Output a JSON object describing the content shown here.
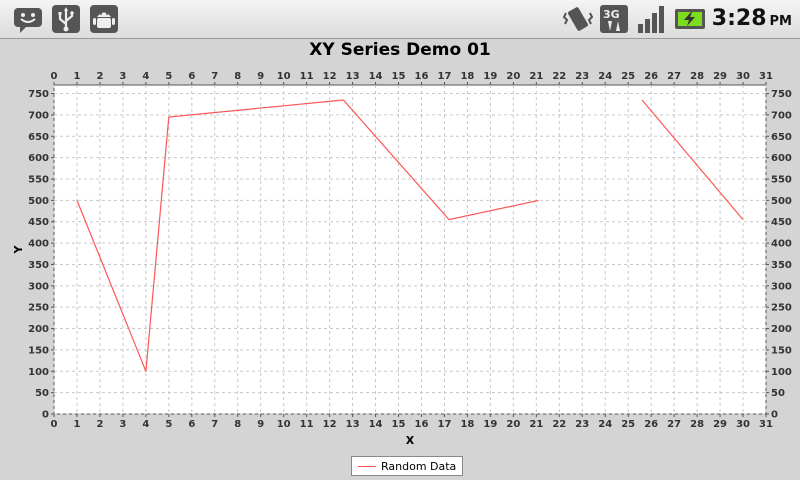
{
  "status_bar": {
    "left_icons": [
      "messaging-icon",
      "usb-icon",
      "android-debug-icon"
    ],
    "right_icons": [
      "vibrate-icon",
      "3g-data-icon",
      "signal-strength-icon",
      "battery-charging-icon"
    ],
    "time": "3:28",
    "ampm": "PM"
  },
  "chart_data": {
    "type": "line",
    "title": "XY Series Demo 01",
    "xlabel": "X",
    "ylabel": "Y",
    "xlim": [
      0,
      31
    ],
    "ylim": [
      0,
      770
    ],
    "x_ticks": [
      0,
      1,
      2,
      3,
      4,
      5,
      6,
      7,
      8,
      9,
      10,
      11,
      12,
      13,
      14,
      15,
      16,
      17,
      18,
      19,
      20,
      21,
      22,
      23,
      24,
      25,
      26,
      27,
      28,
      29,
      30,
      31
    ],
    "y_ticks": [
      0,
      50,
      100,
      150,
      200,
      250,
      300,
      350,
      400,
      450,
      500,
      550,
      600,
      650,
      700,
      750
    ],
    "grid": true,
    "mirror_axes": true,
    "legend_position": "bottom",
    "series": [
      {
        "name": "Random Data",
        "color": "#ff5555",
        "segments": [
          [
            [
              1,
              500
            ],
            [
              4,
              100
            ],
            [
              5,
              695
            ],
            [
              12.6,
              735
            ],
            [
              17.2,
              455
            ],
            [
              21.1,
              500
            ]
          ],
          [
            [
              25.6,
              735
            ],
            [
              30,
              455
            ]
          ]
        ]
      }
    ]
  }
}
